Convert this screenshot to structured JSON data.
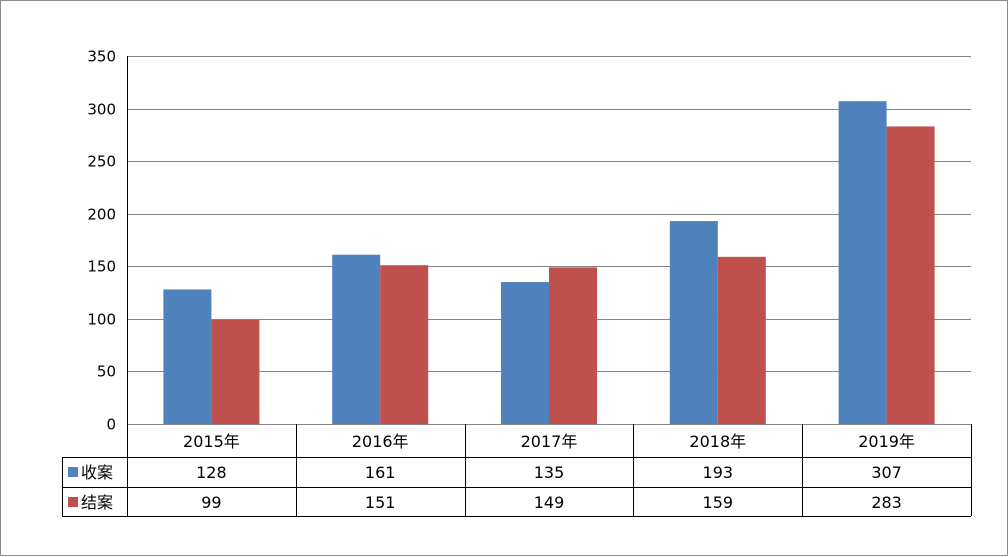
{
  "chart_data": {
    "type": "bar",
    "categories": [
      "2015年",
      "2016年",
      "2017年",
      "2018年",
      "2019年"
    ],
    "series": [
      {
        "name": "收案",
        "values": [
          128,
          161,
          135,
          193,
          307
        ],
        "color": "#4f81bd"
      },
      {
        "name": "结案",
        "values": [
          99,
          151,
          149,
          159,
          283
        ],
        "color": "#c0504d"
      }
    ],
    "ylim": [
      0,
      350
    ],
    "yticks": [
      0,
      50,
      100,
      150,
      200,
      250,
      300,
      350
    ],
    "grid": true,
    "legend": "data-table"
  },
  "colors": {
    "gridline": "#868686",
    "frame": "#8c8c8c"
  }
}
